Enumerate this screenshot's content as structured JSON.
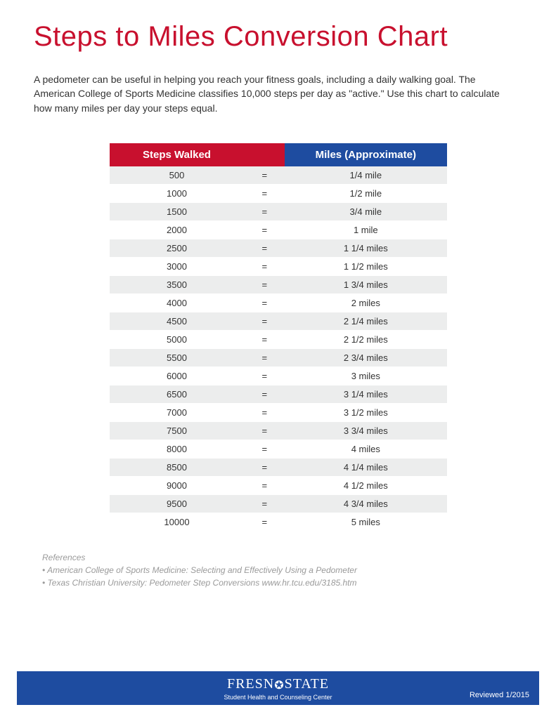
{
  "title": "Steps to Miles Conversion Chart",
  "intro": "A pedometer can be useful in helping you reach your fitness goals, including a daily walking goal. The American College of Sports Medicine classifies 10,000 steps per day as \"active.\" Use this chart to calculate how many miles per day your steps equal.",
  "table": {
    "header_steps": "Steps Walked",
    "header_miles": "Miles (Approximate)",
    "header_bg_steps": "#c8102e",
    "header_bg_miles": "#1e4ca0",
    "row_alt_bg": "#eceded",
    "text_color": "#333333",
    "rows": [
      {
        "steps": "500",
        "eq": "=",
        "miles": "1/4 mile"
      },
      {
        "steps": "1000",
        "eq": "=",
        "miles": "1/2 mile"
      },
      {
        "steps": "1500",
        "eq": "=",
        "miles": "3/4 mile"
      },
      {
        "steps": "2000",
        "eq": "=",
        "miles": "1 mile"
      },
      {
        "steps": "2500",
        "eq": "=",
        "miles": "1 1/4 miles"
      },
      {
        "steps": "3000",
        "eq": "=",
        "miles": "1 1/2 miles"
      },
      {
        "steps": "3500",
        "eq": "=",
        "miles": "1 3/4 miles"
      },
      {
        "steps": "4000",
        "eq": "=",
        "miles": "2 miles"
      },
      {
        "steps": "4500",
        "eq": "=",
        "miles": "2 1/4 miles"
      },
      {
        "steps": "5000",
        "eq": "=",
        "miles": "2 1/2 miles"
      },
      {
        "steps": "5500",
        "eq": "=",
        "miles": "2 3/4 miles"
      },
      {
        "steps": "6000",
        "eq": "=",
        "miles": "3 miles"
      },
      {
        "steps": "6500",
        "eq": "=",
        "miles": "3 1/4 miles"
      },
      {
        "steps": "7000",
        "eq": "=",
        "miles": "3 1/2 miles"
      },
      {
        "steps": "7500",
        "eq": "=",
        "miles": "3 3/4 miles"
      },
      {
        "steps": "8000",
        "eq": "=",
        "miles": "4 miles"
      },
      {
        "steps": "8500",
        "eq": "=",
        "miles": "4 1/4 miles"
      },
      {
        "steps": "9000",
        "eq": "=",
        "miles": "4 1/2 miles"
      },
      {
        "steps": "9500",
        "eq": "=",
        "miles": "4 3/4 miles"
      },
      {
        "steps": "10000",
        "eq": "=",
        "miles": "5 miles"
      }
    ]
  },
  "references": {
    "heading": "References",
    "items": [
      "• American College of Sports Medicine: Selecting and Effectively Using a Pedometer",
      "• Texas Christian University: Pedometer Step Conversions www.hr.tcu.edu/3185.htm"
    ]
  },
  "footer": {
    "logo_pre": "FRESN",
    "logo_post": "STATE",
    "subtitle": "Student Health and Counseling Center",
    "reviewed": "Reviewed  1/2015",
    "bg_color": "#1e4ca0"
  },
  "colors": {
    "title": "#c8102e",
    "text": "#333333",
    "ref_text": "#9a9a9a",
    "footer_bg": "#1e4ca0"
  }
}
